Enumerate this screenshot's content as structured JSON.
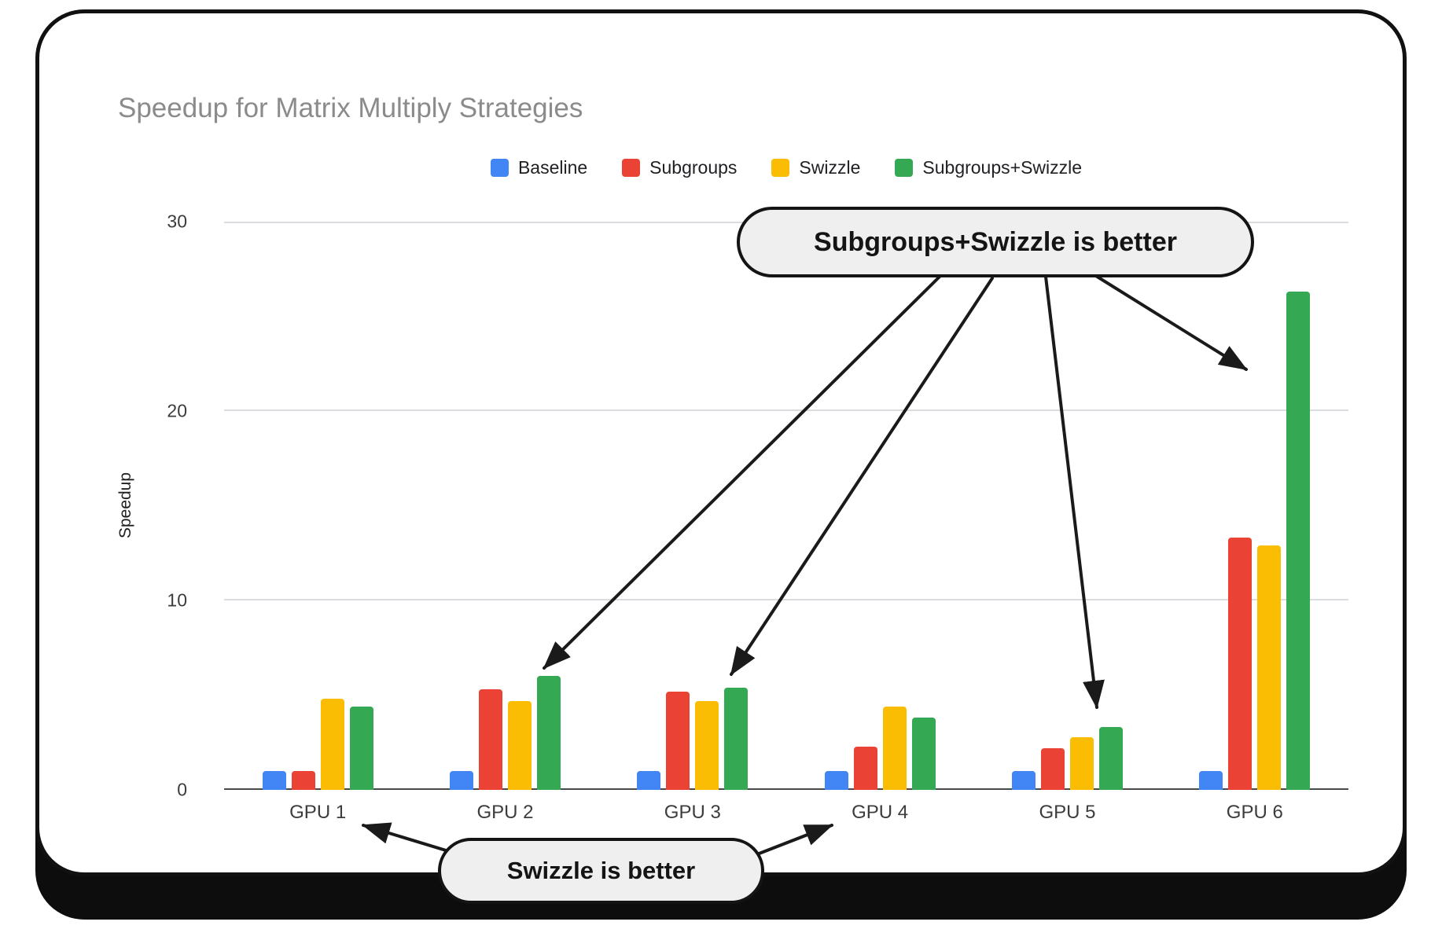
{
  "chart_data": {
    "type": "bar",
    "title": "Speedup for Matrix Multiply Strategies",
    "xlabel": "",
    "ylabel": "Speedup",
    "ylim": [
      0,
      30
    ],
    "yticks": [
      0,
      10,
      20,
      30
    ],
    "grid": true,
    "legend_position": "top",
    "categories": [
      "GPU 1",
      "GPU 2",
      "GPU 3",
      "GPU 4",
      "GPU 5",
      "GPU 6"
    ],
    "series": [
      {
        "name": "Baseline",
        "color": "#4285F4",
        "values": [
          1.0,
          1.0,
          1.0,
          1.0,
          1.0,
          1.0
        ]
      },
      {
        "name": "Subgroups",
        "color": "#EA4335",
        "values": [
          1.0,
          5.3,
          5.2,
          2.3,
          2.2,
          13.3
        ]
      },
      {
        "name": "Swizzle",
        "color": "#FBBC04",
        "values": [
          4.8,
          4.7,
          4.7,
          4.4,
          2.8,
          12.9
        ]
      },
      {
        "name": "Subgroups+Swizzle",
        "color": "#34A853",
        "values": [
          4.4,
          6.0,
          5.4,
          3.8,
          3.3,
          26.3
        ]
      }
    ]
  },
  "annotations": {
    "top_callout": {
      "label": "Subgroups+Swizzle is better"
    },
    "bottom_callout": {
      "label": "Swizzle is better"
    }
  },
  "colors": {
    "card_border": "#111111",
    "callout_bg": "#efefef",
    "gridline": "#dadce0",
    "axis_line": "#4a4a4a",
    "title_text": "#8b8b8b"
  }
}
